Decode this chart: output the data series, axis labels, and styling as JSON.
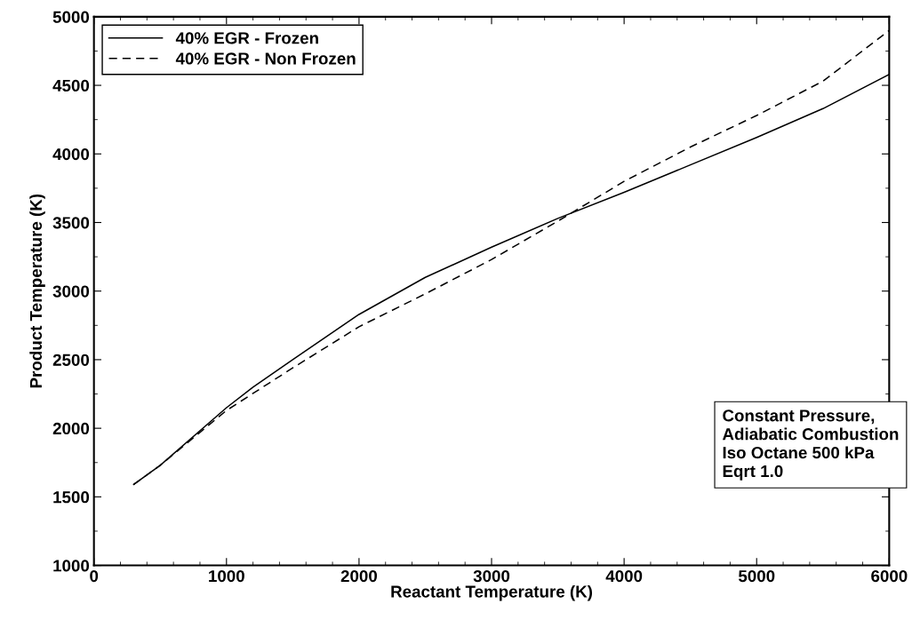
{
  "chart_data": {
    "type": "line",
    "xlabel": "Reactant Temperature (K)",
    "ylabel": "Product Temperature (K)",
    "xlim": [
      0,
      6000
    ],
    "xticks": [
      0,
      1000,
      2000,
      3000,
      4000,
      5000,
      6000
    ],
    "ylim": [
      1000,
      5000
    ],
    "yticks": [
      1000,
      1500,
      2000,
      2500,
      3000,
      3500,
      4000,
      4500,
      5000
    ],
    "legend": "top left",
    "grid": false,
    "series": [
      {
        "name": "40% EGR - Frozen",
        "color": "#000000",
        "line_style": "solid",
        "x": [
          300,
          500,
          1000,
          1200,
          1500,
          2000,
          2500,
          3000,
          3500,
          4000,
          4500,
          5000,
          5500,
          6000
        ],
        "values": [
          1590,
          1730,
          2150,
          2300,
          2500,
          2830,
          3100,
          3320,
          3530,
          3720,
          3920,
          4120,
          4330,
          4580
        ]
      },
      {
        "name": "40% EGR - Non Frozen",
        "color": "#000000",
        "line_style": "dashed",
        "x": [
          300,
          500,
          1000,
          1500,
          2000,
          2500,
          3000,
          3500,
          4000,
          4500,
          5000,
          5500,
          6000
        ],
        "values": [
          1590,
          1730,
          2130,
          2440,
          2740,
          2980,
          3230,
          3510,
          3800,
          4050,
          4280,
          4530,
          4900
        ]
      }
    ],
    "annotations": [
      "Constant Pressure,\nAdiabatic Combustion\nIso Octane 500 kPa\nEqrt 1.0"
    ]
  }
}
